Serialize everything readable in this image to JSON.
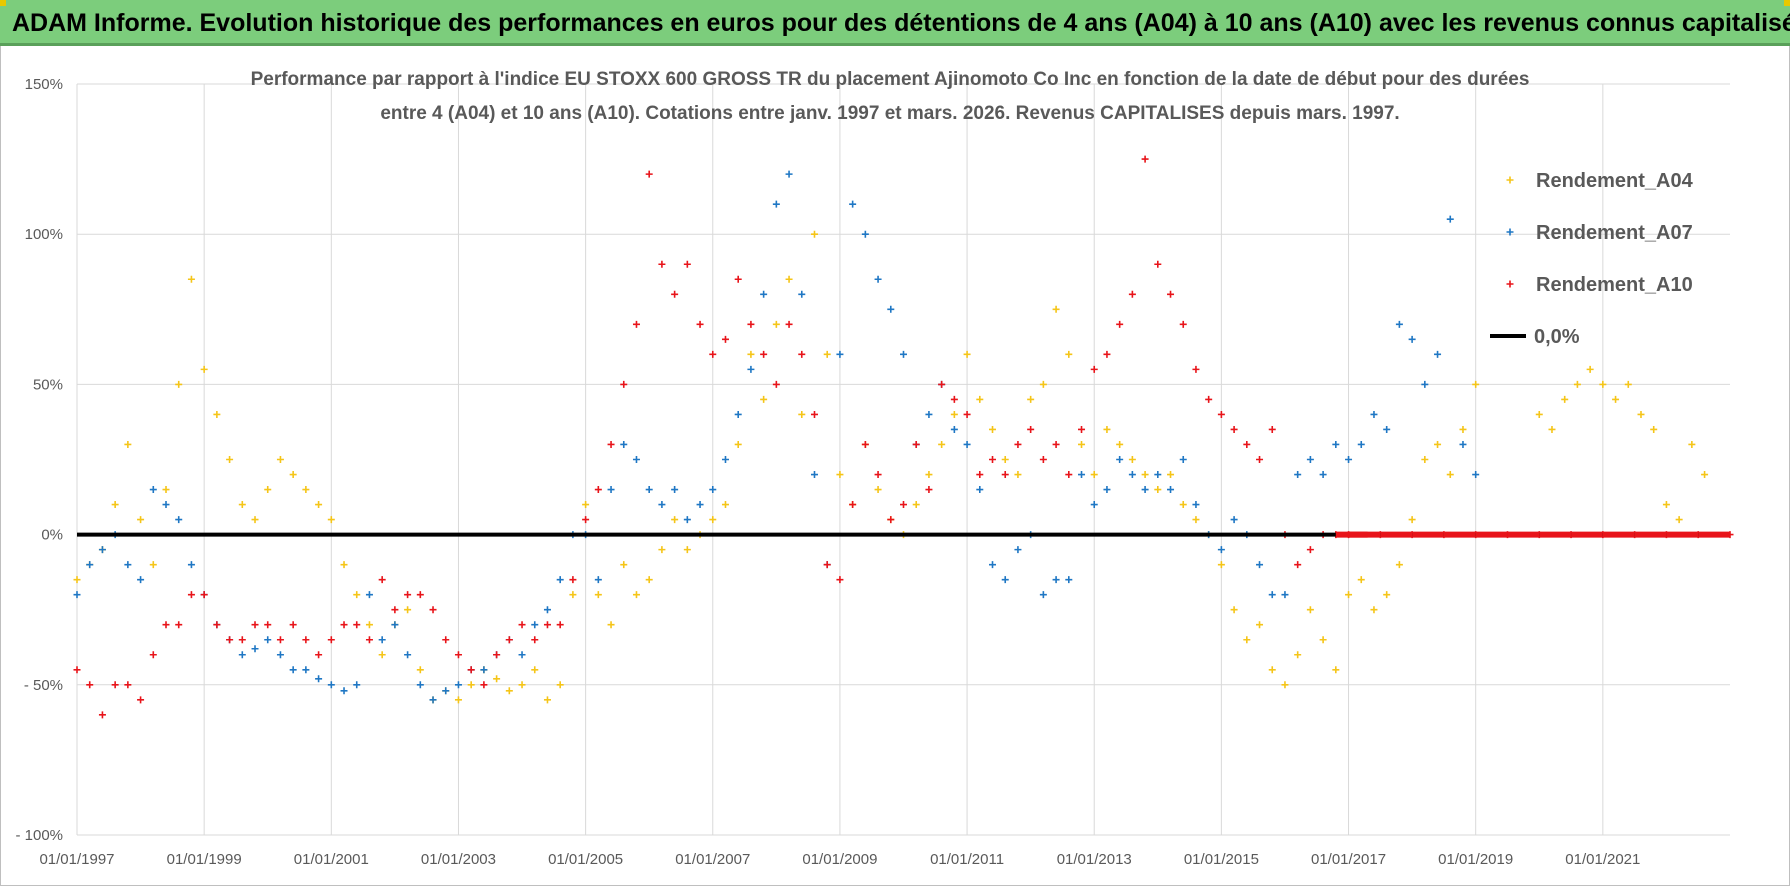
{
  "banner": {
    "title": "ADAM Informe. Evolution historique des performances en euros pour des détentions de 4 ans (A04) à 10 ans (A10) avec les revenus connus capitalisés"
  },
  "colors": {
    "banner_bg": "#7ccd7c",
    "A04": "#f5c518",
    "A07": "#1f77c4",
    "A10": "#e8141a",
    "zero_line": "#000000"
  },
  "chart_data": {
    "type": "scatter",
    "title_line1": "Performance par rapport à l'indice EU STOXX 600 GROSS TR  du placement Ajinomoto Co Inc en fonction de la date de début pour des durées",
    "title_line2": "entre 4 (A04) et 10 ans (A10).  Cotations entre janv. 1997 et mars. 2026.  Revenus CAPITALISES depuis mars. 1997.",
    "xlim": [
      1997.0,
      2023.0
    ],
    "ylim": [
      -100,
      150
    ],
    "y_ticks": [
      {
        "value": 150,
        "label": "150%"
      },
      {
        "value": 100,
        "label": "100%"
      },
      {
        "value": 50,
        "label": "50%"
      },
      {
        "value": 0,
        "label": "0%"
      },
      {
        "value": -50,
        "label": "- 50%"
      },
      {
        "value": -100,
        "label": "- 100%"
      }
    ],
    "x_ticks": [
      {
        "value": 1997,
        "label": "01/01/1997"
      },
      {
        "value": 1999,
        "label": "01/01/1999"
      },
      {
        "value": 2001,
        "label": "01/01/2001"
      },
      {
        "value": 2003,
        "label": "01/01/2003"
      },
      {
        "value": 2005,
        "label": "01/01/2005"
      },
      {
        "value": 2007,
        "label": "01/01/2007"
      },
      {
        "value": 2009,
        "label": "01/01/2009"
      },
      {
        "value": 2011,
        "label": "01/01/2011"
      },
      {
        "value": 2013,
        "label": "01/01/2013"
      },
      {
        "value": 2015,
        "label": "01/01/2015"
      },
      {
        "value": 2017,
        "label": "01/01/2017"
      },
      {
        "value": 2019,
        "label": "01/01/2019"
      },
      {
        "value": 2021,
        "label": "01/01/2021"
      }
    ],
    "grid": true,
    "legend_position": "top-right",
    "legend": [
      {
        "key": "A04",
        "label": "Rendement_A04",
        "marker": "+"
      },
      {
        "key": "A07",
        "label": "Rendement_A07",
        "marker": "+"
      },
      {
        "key": "A10",
        "label": "Rendement_A10",
        "marker": "+"
      },
      {
        "key": "zero",
        "label": "0,0%",
        "marker": "line"
      }
    ],
    "series": [
      {
        "name": "Rendement_A04",
        "key": "A04",
        "x": [
          1997.0,
          1997.2,
          1997.4,
          1997.6,
          1997.8,
          1998.0,
          1998.2,
          1998.4,
          1998.6,
          1998.8,
          1999.0,
          1999.2,
          1999.4,
          1999.6,
          1999.8,
          2000.0,
          2000.2,
          2000.4,
          2000.6,
          2000.8,
          2001.0,
          2001.2,
          2001.4,
          2001.6,
          2001.8,
          2002.0,
          2002.2,
          2002.4,
          2002.6,
          2002.8,
          2003.0,
          2003.2,
          2003.4,
          2003.6,
          2003.8,
          2004.0,
          2004.2,
          2004.4,
          2004.6,
          2004.8,
          2005.0,
          2005.2,
          2005.4,
          2005.6,
          2005.8,
          2006.0,
          2006.2,
          2006.4,
          2006.6,
          2006.8,
          2007.0,
          2007.2,
          2007.4,
          2007.6,
          2007.8,
          2008.0,
          2008.2,
          2008.4,
          2008.6,
          2008.8,
          2009.0,
          2009.2,
          2009.4,
          2009.6,
          2009.8,
          2010.0,
          2010.2,
          2010.4,
          2010.6,
          2010.8,
          2011.0,
          2011.2,
          2011.4,
          2011.6,
          2011.8,
          2012.0,
          2012.2,
          2012.4,
          2012.6,
          2012.8,
          2013.0,
          2013.2,
          2013.4,
          2013.6,
          2013.8,
          2014.0,
          2014.2,
          2014.4,
          2014.6,
          2014.8,
          2015.0,
          2015.2,
          2015.4,
          2015.6,
          2015.8,
          2016.0,
          2016.2,
          2016.4,
          2016.6,
          2016.8,
          2017.0,
          2017.2,
          2017.4,
          2017.6,
          2017.8,
          2018.0,
          2018.2,
          2018.4,
          2018.6,
          2018.8,
          2019.0,
          2020.0,
          2020.2,
          2020.4,
          2020.6,
          2020.8,
          2021.0,
          2021.2,
          2021.4,
          2021.6,
          2021.8,
          2022.0,
          2022.2,
          2022.4,
          2022.6
        ],
        "y": [
          -15,
          -10,
          -5,
          10,
          30,
          5,
          -10,
          15,
          50,
          85,
          55,
          40,
          25,
          10,
          5,
          15,
          25,
          20,
          15,
          10,
          5,
          -10,
          -20,
          -30,
          -40,
          -30,
          -25,
          -45,
          -55,
          -52,
          -55,
          -50,
          -45,
          -48,
          -52,
          -50,
          -45,
          -55,
          -50,
          -20,
          10,
          -20,
          -30,
          -10,
          -20,
          -15,
          -5,
          5,
          -5,
          0,
          5,
          10,
          30,
          60,
          45,
          70,
          85,
          40,
          100,
          60,
          20,
          10,
          30,
          15,
          5,
          0,
          10,
          20,
          30,
          40,
          60,
          45,
          35,
          25,
          20,
          45,
          50,
          75,
          60,
          30,
          20,
          35,
          30,
          25,
          20,
          15,
          20,
          10,
          5,
          0,
          -10,
          -25,
          -35,
          -30,
          -45,
          -50,
          -40,
          -25,
          -35,
          -45,
          -20,
          -15,
          -25,
          -20,
          -10,
          5,
          25,
          30,
          20,
          35,
          50,
          40,
          35,
          45,
          50,
          55,
          50,
          45,
          50,
          40,
          35,
          10,
          5,
          30,
          20
        ]
      },
      {
        "name": "Rendement_A07",
        "key": "A07",
        "x": [
          1997.0,
          1997.2,
          1997.4,
          1997.6,
          1997.8,
          1998.0,
          1998.2,
          1998.4,
          1998.6,
          1998.8,
          1999.0,
          1999.2,
          1999.4,
          1999.6,
          1999.8,
          2000.0,
          2000.2,
          2000.4,
          2000.6,
          2000.8,
          2001.0,
          2001.2,
          2001.4,
          2001.6,
          2001.8,
          2002.0,
          2002.2,
          2002.4,
          2002.6,
          2002.8,
          2003.0,
          2003.2,
          2003.4,
          2003.6,
          2003.8,
          2004.0,
          2004.2,
          2004.4,
          2004.6,
          2004.8,
          2005.0,
          2005.2,
          2005.4,
          2005.6,
          2005.8,
          2006.0,
          2006.2,
          2006.4,
          2006.6,
          2006.8,
          2007.0,
          2007.2,
          2007.4,
          2007.6,
          2007.8,
          2008.0,
          2008.2,
          2008.4,
          2008.6,
          2008.8,
          2009.0,
          2009.2,
          2009.4,
          2009.6,
          2009.8,
          2010.0,
          2010.2,
          2010.4,
          2010.6,
          2010.8,
          2011.0,
          2011.2,
          2011.4,
          2011.6,
          2011.8,
          2012.0,
          2012.2,
          2012.4,
          2012.6,
          2012.8,
          2013.0,
          2013.2,
          2013.4,
          2013.6,
          2013.8,
          2014.0,
          2014.2,
          2014.4,
          2014.6,
          2014.8,
          2015.0,
          2015.2,
          2015.4,
          2015.6,
          2015.8,
          2016.0,
          2016.2,
          2016.4,
          2016.6,
          2016.8,
          2017.0,
          2017.2,
          2017.4,
          2017.6,
          2017.8,
          2018.0,
          2018.2,
          2018.4,
          2018.6,
          2018.8,
          2019.0
        ],
        "y": [
          -20,
          -10,
          -5,
          0,
          -10,
          -15,
          15,
          10,
          5,
          -10,
          -20,
          -30,
          -35,
          -40,
          -38,
          -35,
          -40,
          -45,
          -45,
          -48,
          -50,
          -52,
          -50,
          -20,
          -35,
          -30,
          -40,
          -50,
          -55,
          -52,
          -50,
          -45,
          -45,
          -40,
          -35,
          -40,
          -30,
          -25,
          -15,
          0,
          0,
          -15,
          15,
          30,
          25,
          15,
          10,
          15,
          5,
          10,
          15,
          25,
          40,
          55,
          80,
          110,
          120,
          80,
          20,
          -10,
          60,
          110,
          100,
          85,
          75,
          60,
          30,
          40,
          50,
          35,
          30,
          15,
          -10,
          -15,
          -5,
          0,
          -20,
          -15,
          -15,
          20,
          10,
          15,
          25,
          20,
          15,
          20,
          15,
          25,
          10,
          0,
          -5,
          5,
          0,
          -10,
          -20,
          -20,
          20,
          25,
          20,
          30,
          25,
          30,
          40,
          35,
          70,
          65,
          50,
          60,
          105,
          30,
          20
        ]
      },
      {
        "name": "Rendement_A10",
        "key": "A10",
        "x": [
          1997.0,
          1997.2,
          1997.4,
          1997.6,
          1997.8,
          1998.0,
          1998.2,
          1998.4,
          1998.6,
          1998.8,
          1999.0,
          1999.2,
          1999.4,
          1999.6,
          1999.8,
          2000.0,
          2000.2,
          2000.4,
          2000.6,
          2000.8,
          2001.0,
          2001.2,
          2001.4,
          2001.6,
          2001.8,
          2002.0,
          2002.2,
          2002.4,
          2002.6,
          2002.8,
          2003.0,
          2003.2,
          2003.4,
          2003.6,
          2003.8,
          2004.0,
          2004.2,
          2004.4,
          2004.6,
          2004.8,
          2005.0,
          2005.2,
          2005.4,
          2005.6,
          2005.8,
          2006.0,
          2006.2,
          2006.4,
          2006.6,
          2006.8,
          2007.0,
          2007.2,
          2007.4,
          2007.6,
          2007.8,
          2008.0,
          2008.2,
          2008.4,
          2008.6,
          2008.8,
          2009.0,
          2009.2,
          2009.4,
          2009.6,
          2009.8,
          2010.0,
          2010.2,
          2010.4,
          2010.6,
          2010.8,
          2011.0,
          2011.2,
          2011.4,
          2011.6,
          2011.8,
          2012.0,
          2012.2,
          2012.4,
          2012.6,
          2012.8,
          2013.0,
          2013.2,
          2013.4,
          2013.6,
          2013.8,
          2014.0,
          2014.2,
          2014.4,
          2014.6,
          2014.8,
          2015.0,
          2015.2,
          2015.4,
          2015.6,
          2015.8,
          2016.0,
          2016.2,
          2016.4,
          2016.6,
          2016.8,
          2017.0,
          2017.5,
          2018.0,
          2018.5,
          2019.0,
          2019.5,
          2020.0,
          2020.5,
          2021.0,
          2021.5,
          2022.0,
          2022.5,
          2023.0
        ],
        "y": [
          -45,
          -50,
          -60,
          -50,
          -50,
          -55,
          -40,
          -30,
          -30,
          -20,
          -20,
          -30,
          -35,
          -35,
          -30,
          -30,
          -35,
          -30,
          -35,
          -40,
          -35,
          -30,
          -30,
          -35,
          -15,
          -25,
          -20,
          -20,
          -25,
          -35,
          -40,
          -45,
          -50,
          -40,
          -35,
          -30,
          -35,
          -30,
          -30,
          -15,
          5,
          15,
          30,
          50,
          70,
          120,
          90,
          80,
          90,
          70,
          60,
          65,
          85,
          70,
          60,
          50,
          70,
          60,
          40,
          -10,
          -15,
          10,
          30,
          20,
          5,
          10,
          30,
          15,
          50,
          45,
          40,
          20,
          25,
          20,
          30,
          35,
          25,
          30,
          20,
          35,
          55,
          60,
          70,
          80,
          125,
          90,
          80,
          70,
          55,
          45,
          40,
          35,
          30,
          25,
          35,
          0,
          -10,
          -5,
          0,
          0,
          0,
          0,
          0,
          0,
          0,
          0,
          0,
          0,
          0,
          0,
          0,
          0,
          0
        ]
      }
    ]
  }
}
